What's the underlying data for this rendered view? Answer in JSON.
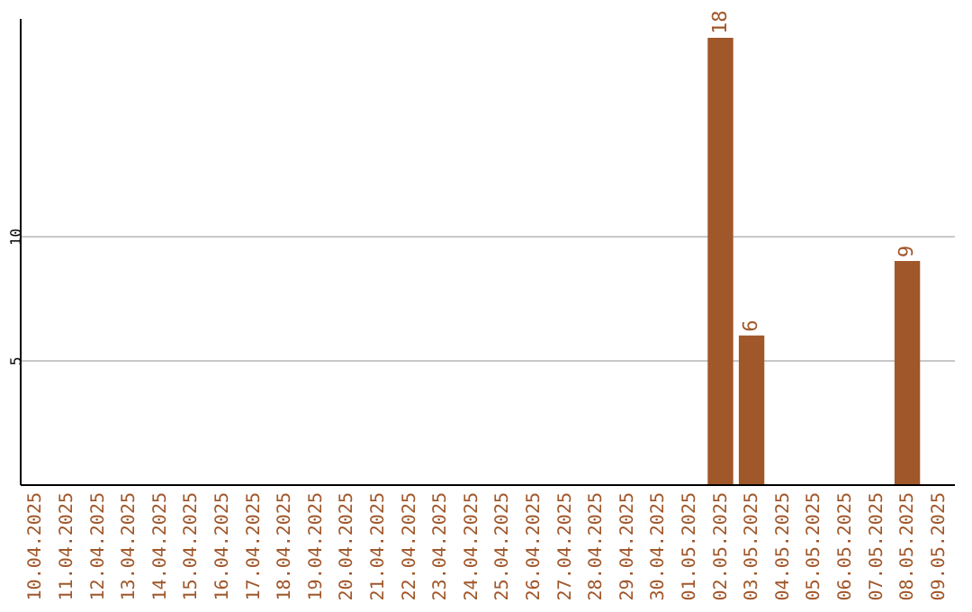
{
  "chart_data": {
    "type": "bar",
    "categories": [
      "10.04.2025",
      "11.04.2025",
      "12.04.2025",
      "13.04.2025",
      "14.04.2025",
      "15.04.2025",
      "16.04.2025",
      "17.04.2025",
      "18.04.2025",
      "19.04.2025",
      "20.04.2025",
      "21.04.2025",
      "22.04.2025",
      "23.04.2025",
      "24.04.2025",
      "25.04.2025",
      "26.04.2025",
      "27.04.2025",
      "28.04.2025",
      "29.04.2025",
      "30.04.2025",
      "01.05.2025",
      "02.05.2025",
      "03.05.2025",
      "04.05.2025",
      "05.05.2025",
      "06.05.2025",
      "07.05.2025",
      "08.05.2025",
      "09.05.2025"
    ],
    "values": [
      null,
      null,
      null,
      null,
      null,
      null,
      null,
      null,
      null,
      null,
      null,
      null,
      null,
      null,
      null,
      null,
      null,
      null,
      null,
      null,
      null,
      null,
      18,
      6,
      null,
      null,
      null,
      null,
      9,
      null
    ],
    "color": "#a0572a",
    "ylim": [
      0,
      18.8
    ],
    "yticks": [
      5,
      10
    ],
    "grid": "y",
    "data_labels": true
  }
}
